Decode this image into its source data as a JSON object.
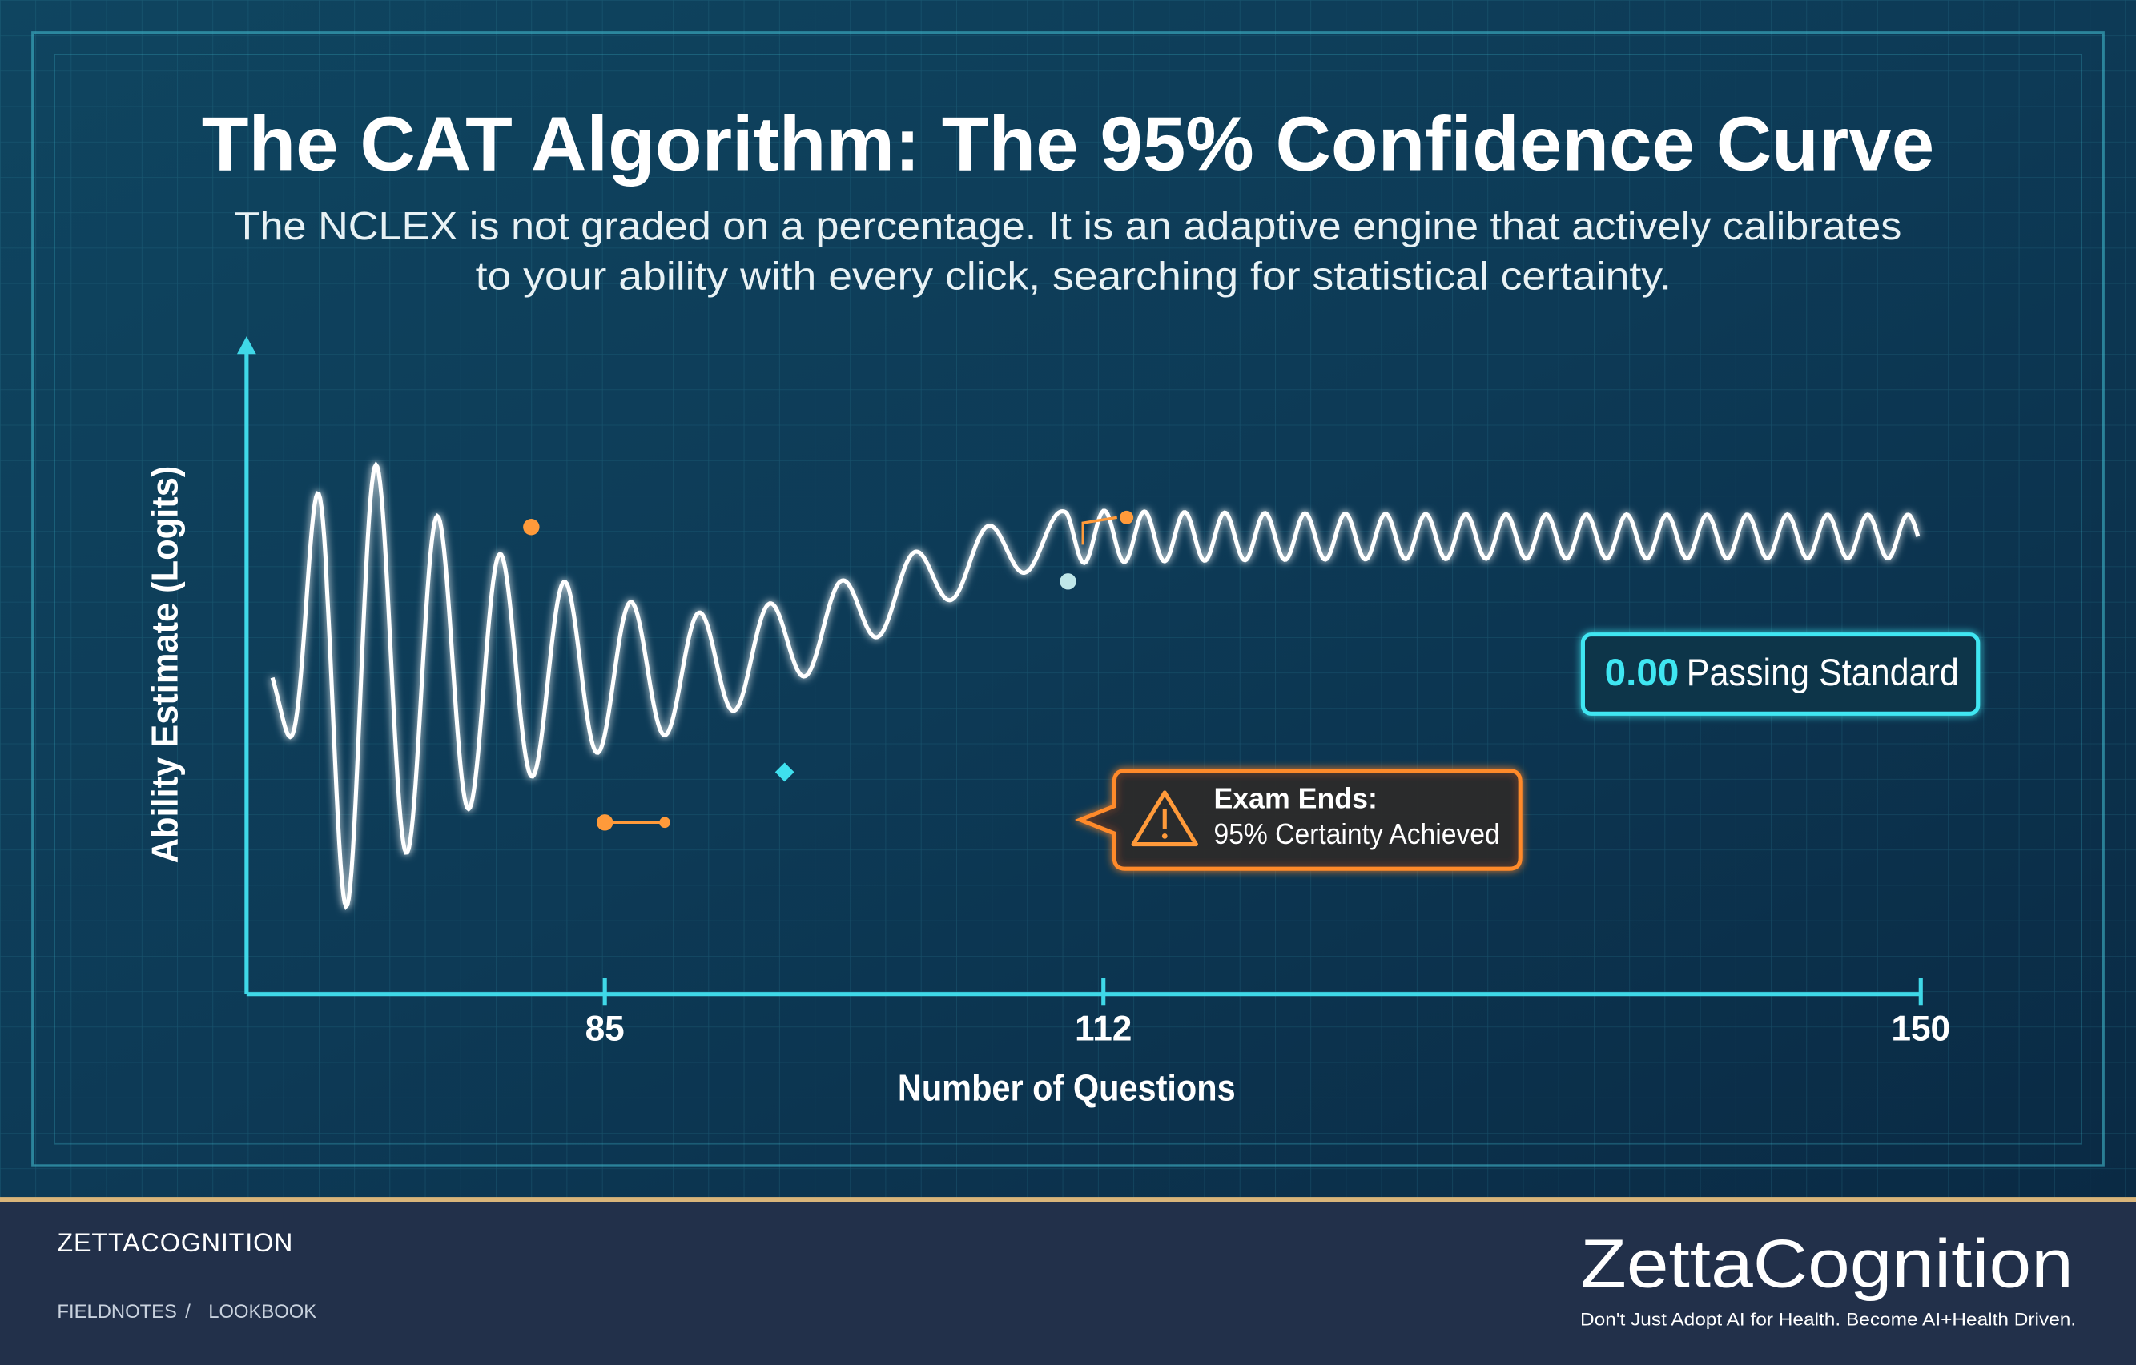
{
  "infographic": {
    "title": "The CAT Algorithm: The 95% Confidence Curve",
    "subtitle": [
      "The NCLEX is not graded on a percentage. It is an adaptive engine that actively calibrates",
      "to your ability with every click, searching for statistical certainty."
    ],
    "y_axis_label": "Ability Estimate (Logits)",
    "x_axis_label": "Number of Questions",
    "x_ticks": [
      "85",
      "112",
      "150"
    ],
    "passing_standard": {
      "value": "0.00",
      "label": "Passing Standard"
    },
    "callout": {
      "title": "Exam Ends:",
      "text": "95% Certainty Achieved"
    }
  },
  "footer": {
    "brand": "ZETTACOGNITION",
    "breadcrumb": [
      "FIELDNOTES",
      "LOOKBOOK"
    ],
    "separator": "/",
    "logo": "ZettaCognition",
    "tagline": "Don't Just Adopt AI for Health. Become AI+Health Driven."
  }
}
